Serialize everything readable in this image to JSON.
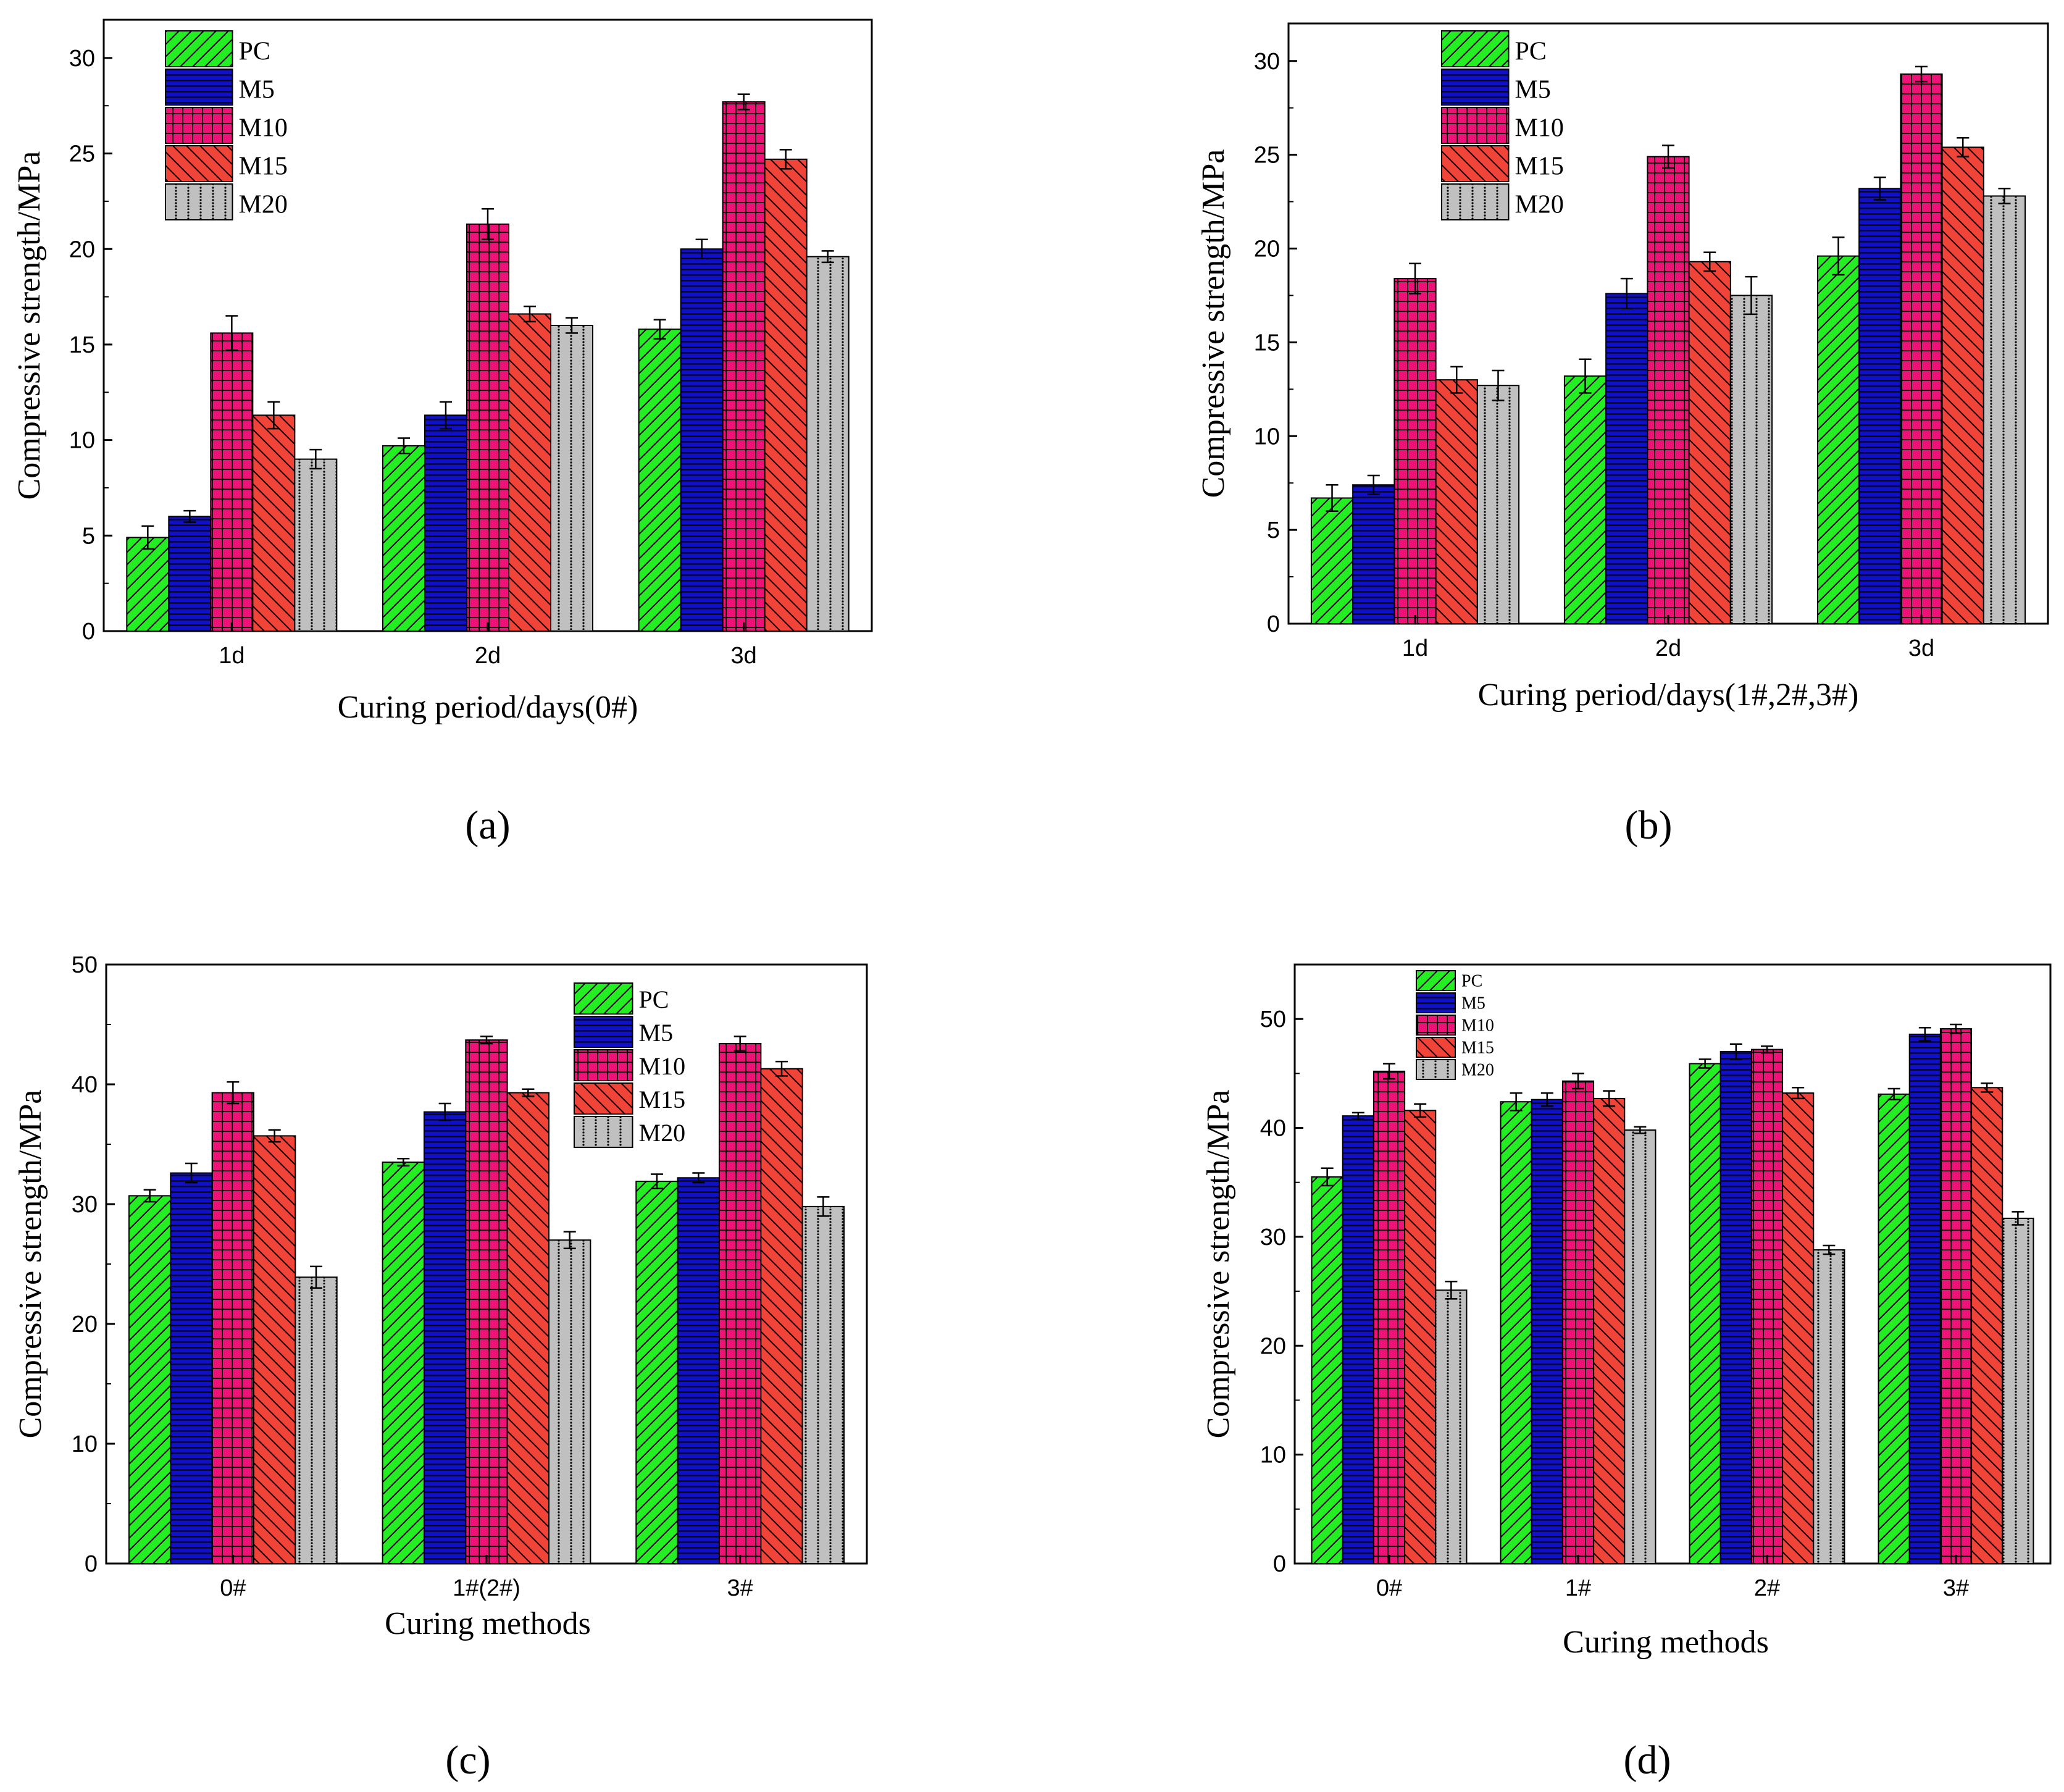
{
  "colors": {
    "PC": "#22ee22",
    "M5": "#1010c8",
    "M10": "#ee1177",
    "M15": "#f04438",
    "M20": "#c0c0c0"
  },
  "chart_data": [
    {
      "panel": "(a)",
      "type": "bar",
      "xlabel": "Curing period/days(0#)",
      "ylabel": "Compressive strength/MPa",
      "categories": [
        "1d",
        "2d",
        "3d"
      ],
      "ylim": [
        0,
        32
      ],
      "yticks": [
        0,
        5,
        10,
        15,
        20,
        25,
        30
      ],
      "legend_position": "top-left",
      "series": [
        {
          "name": "PC",
          "values": [
            4.9,
            9.7,
            15.8
          ],
          "errors": [
            0.6,
            0.4,
            0.5
          ]
        },
        {
          "name": "M5",
          "values": [
            6.0,
            11.3,
            20.0
          ],
          "errors": [
            0.3,
            0.7,
            0.5
          ]
        },
        {
          "name": "M10",
          "values": [
            15.6,
            21.3,
            27.7
          ],
          "errors": [
            0.9,
            0.8,
            0.4
          ]
        },
        {
          "name": "M15",
          "values": [
            11.3,
            16.6,
            24.7
          ],
          "errors": [
            0.7,
            0.4,
            0.5
          ]
        },
        {
          "name": "M20",
          "values": [
            9.0,
            16.0,
            19.6
          ],
          "errors": [
            0.5,
            0.4,
            0.3
          ]
        }
      ]
    },
    {
      "panel": "(b)",
      "type": "bar",
      "xlabel": "Curing period/days(1#,2#,3#)",
      "ylabel": "Compressive strength/MPa",
      "categories": [
        "1d",
        "2d",
        "3d"
      ],
      "ylim": [
        0,
        32
      ],
      "yticks": [
        0,
        5,
        10,
        15,
        20,
        25,
        30
      ],
      "legend_position": "top-left",
      "series": [
        {
          "name": "PC",
          "values": [
            6.7,
            13.2,
            19.6
          ],
          "errors": [
            0.7,
            0.9,
            1.0
          ]
        },
        {
          "name": "M5",
          "values": [
            7.4,
            17.6,
            23.2
          ],
          "errors": [
            0.5,
            0.8,
            0.6
          ]
        },
        {
          "name": "M10",
          "values": [
            18.4,
            24.9,
            29.3
          ],
          "errors": [
            0.8,
            0.6,
            0.4
          ]
        },
        {
          "name": "M15",
          "values": [
            13.0,
            19.3,
            25.4
          ],
          "errors": [
            0.7,
            0.5,
            0.5
          ]
        },
        {
          "name": "M20",
          "values": [
            12.7,
            17.5,
            22.8
          ],
          "errors": [
            0.8,
            1.0,
            0.4
          ]
        }
      ]
    },
    {
      "panel": "(c)",
      "type": "bar",
      "xlabel": "Curing methods",
      "ylabel": "Compressive strength/MPa",
      "categories": [
        "0#",
        "1#(2#)",
        "3#"
      ],
      "ylim": [
        0,
        50
      ],
      "yticks": [
        0,
        10,
        20,
        30,
        40,
        50
      ],
      "legend_position": "top-right",
      "series": [
        {
          "name": "PC",
          "values": [
            30.7,
            33.5,
            31.9
          ],
          "errors": [
            0.5,
            0.3,
            0.6
          ]
        },
        {
          "name": "M5",
          "values": [
            32.6,
            37.7,
            32.2
          ],
          "errors": [
            0.8,
            0.7,
            0.4
          ]
        },
        {
          "name": "M10",
          "values": [
            39.3,
            43.7,
            43.4
          ],
          "errors": [
            0.9,
            0.3,
            0.6
          ]
        },
        {
          "name": "M15",
          "values": [
            35.7,
            39.3,
            41.3
          ],
          "errors": [
            0.5,
            0.3,
            0.6
          ]
        },
        {
          "name": "M20",
          "values": [
            23.9,
            27.0,
            29.8
          ],
          "errors": [
            0.9,
            0.7,
            0.8
          ]
        }
      ]
    },
    {
      "panel": "(d)",
      "type": "bar",
      "xlabel": "Curing methods",
      "ylabel": "Compressive strength/MPa",
      "categories": [
        "0#",
        "1#",
        "2#",
        "3#"
      ],
      "ylim": [
        0,
        55
      ],
      "yticks": [
        0,
        10,
        20,
        30,
        40,
        50
      ],
      "legend_position": "top-left",
      "series": [
        {
          "name": "PC",
          "values": [
            35.5,
            42.4,
            45.9,
            43.1
          ],
          "errors": [
            0.8,
            0.8,
            0.4,
            0.5
          ]
        },
        {
          "name": "M5",
          "values": [
            41.1,
            42.6,
            47.0,
            48.6
          ],
          "errors": [
            0.3,
            0.6,
            0.7,
            0.6
          ]
        },
        {
          "name": "M10",
          "values": [
            45.2,
            44.3,
            47.2,
            49.1
          ],
          "errors": [
            0.7,
            0.7,
            0.3,
            0.4
          ]
        },
        {
          "name": "M15",
          "values": [
            41.6,
            42.7,
            43.2,
            43.7
          ],
          "errors": [
            0.6,
            0.7,
            0.5,
            0.4
          ]
        },
        {
          "name": "M20",
          "values": [
            25.1,
            39.8,
            28.8,
            31.7
          ],
          "errors": [
            0.8,
            0.3,
            0.4,
            0.6
          ]
        }
      ]
    }
  ]
}
